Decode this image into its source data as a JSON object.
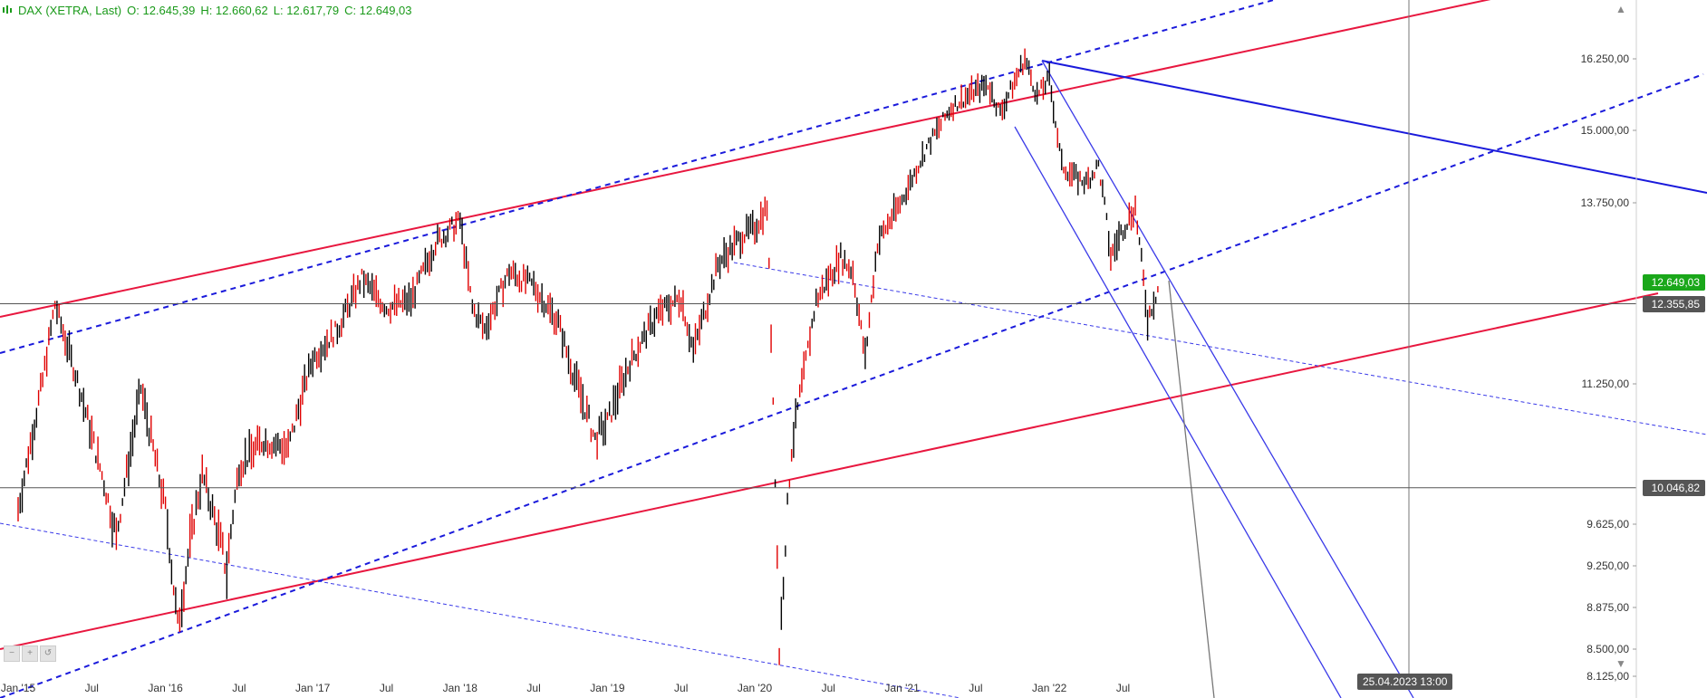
{
  "header": {
    "symbol": "DAX (XETRA, Last)",
    "open": "O: 12.645,39",
    "high": "H: 12.660,62",
    "low": "L: 12.617,79",
    "close": "C: 12.649,03"
  },
  "price_tags": {
    "last": "12.649,03",
    "level_upper": "12.355,85",
    "level_lower": "10.046,82"
  },
  "crosshair_date": "25.04.2023 13:00",
  "colors": {
    "candle": "#000000",
    "candle_down": "#e00000",
    "red_channel": "#e8173f",
    "blue_channel": "#1a1adb",
    "blue_thin": "#3a3ae8",
    "level_line": "#555555",
    "header_text": "#1a9a1a",
    "last_tag": "#1aa71a"
  },
  "chart_data": {
    "type": "candlestick",
    "title": "DAX (XETRA, Last)",
    "y_ticks": [
      "16.250,00",
      "15.000,00",
      "13.750,00",
      "11.250,00",
      "9.625,00",
      "9.250,00",
      "8.875,00",
      "8.500,00",
      "8.125,00"
    ],
    "y_tick_values": [
      16250,
      15000,
      13750,
      11250,
      9625,
      9250,
      8875,
      8500,
      8125
    ],
    "x_ticks": [
      "Jan '15",
      "Jul",
      "Jan '16",
      "Jul",
      "Jan '17",
      "Jul",
      "Jan '18",
      "Jul",
      "Jan '19",
      "Jul",
      "Jan '20",
      "Jul",
      "Jan '21",
      "Jul",
      "Jan '22",
      "Jul"
    ],
    "x_tick_dates": [
      "2015-01",
      "2015-07",
      "2016-01",
      "2016-07",
      "2017-01",
      "2017-07",
      "2018-01",
      "2018-07",
      "2019-01",
      "2019-07",
      "2020-01",
      "2020-07",
      "2021-01",
      "2021-07",
      "2022-01",
      "2022-07"
    ],
    "series": [
      {
        "x": [
          "2015-01",
          "2015-03",
          "2015-04",
          "2015-06",
          "2015-08",
          "2015-09",
          "2015-11",
          "2016-01",
          "2016-02",
          "2016-04",
          "2016-06",
          "2016-07",
          "2016-09",
          "2016-11",
          "2017-01",
          "2017-03",
          "2017-05",
          "2017-07",
          "2017-09",
          "2017-11",
          "2018-01",
          "2018-02",
          "2018-03",
          "2018-05",
          "2018-07",
          "2018-09",
          "2018-10",
          "2018-12",
          "2019-01",
          "2019-03",
          "2019-05",
          "2019-07",
          "2019-08",
          "2019-10",
          "2019-12",
          "2020-01",
          "2020-02",
          "2020-03",
          "2020-04",
          "2020-05",
          "2020-06",
          "2020-08",
          "2020-09",
          "2020-10",
          "2020-11",
          "2021-01",
          "2021-03",
          "2021-05",
          "2021-07",
          "2021-08",
          "2021-09",
          "2021-11",
          "2021-12",
          "2022-01",
          "2022-02",
          "2022-03",
          "2022-04",
          "2022-05",
          "2022-06",
          "2022-07",
          "2022-08",
          "2022-09",
          "2022-10"
        ],
        "y": [
          9800,
          11300,
          12350,
          11200,
          10100,
          9500,
          11200,
          9800,
          8700,
          10200,
          9200,
          10300,
          10600,
          10500,
          11600,
          12000,
          12700,
          12300,
          12400,
          13200,
          13500,
          12300,
          12000,
          12800,
          12600,
          12100,
          11500,
          10600,
          10800,
          11600,
          12200,
          12450,
          11700,
          12900,
          13300,
          13400,
          13700,
          8450,
          10500,
          11400,
          12400,
          13000,
          12800,
          11600,
          13200,
          13800,
          14700,
          15400,
          15700,
          15800,
          15300,
          16250,
          15600,
          15900,
          14400,
          14200,
          14100,
          14400,
          13000,
          13400,
          13700,
          12150,
          12650
        ]
      }
    ],
    "levels": [
      12355.85,
      10046.82
    ],
    "ylim": [
      7950,
      17250
    ],
    "grid": false,
    "legend": "none"
  }
}
